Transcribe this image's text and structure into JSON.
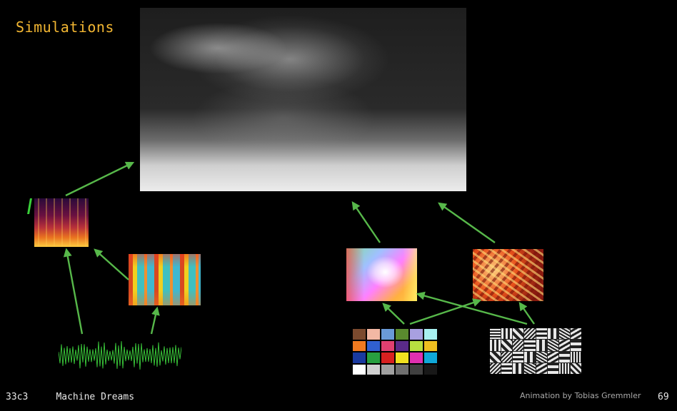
{
  "slide": {
    "title": "Simulations",
    "footer_event": "33c3",
    "footer_talk": "Machine Dreams",
    "credit": "Animation by Tobias Gremmler",
    "page_number": "69"
  },
  "colors": {
    "title": "#f2b632",
    "arrow": "#57b84a",
    "background": "#000000",
    "waveform": "#3ccf3c"
  },
  "palette_swatches": [
    "#7b4a2e",
    "#f2b8a4",
    "#6a9ad8",
    "#5a8a2e",
    "#a8a0e0",
    "#a8f0f0",
    "#f07a20",
    "#3060d0",
    "#e04070",
    "#5a2a88",
    "#b8e040",
    "#f0c020",
    "#1a3aa0",
    "#28a040",
    "#d82020",
    "#f0e020",
    "#e030b0",
    "#10a8d8",
    "#ffffff",
    "#d0d0d0",
    "#a0a0a0",
    "#707070",
    "#404040",
    "#181818"
  ],
  "panels": {
    "main_frame": "simulation-render",
    "spectrogram": "spectrogram",
    "mfcc": "mfcc-heatmap",
    "waveform": "audio-waveform",
    "color_map": "color-field",
    "abstract_art": "abstract-texture",
    "palette": "color-checker-palette",
    "filters": "filter-bank"
  }
}
